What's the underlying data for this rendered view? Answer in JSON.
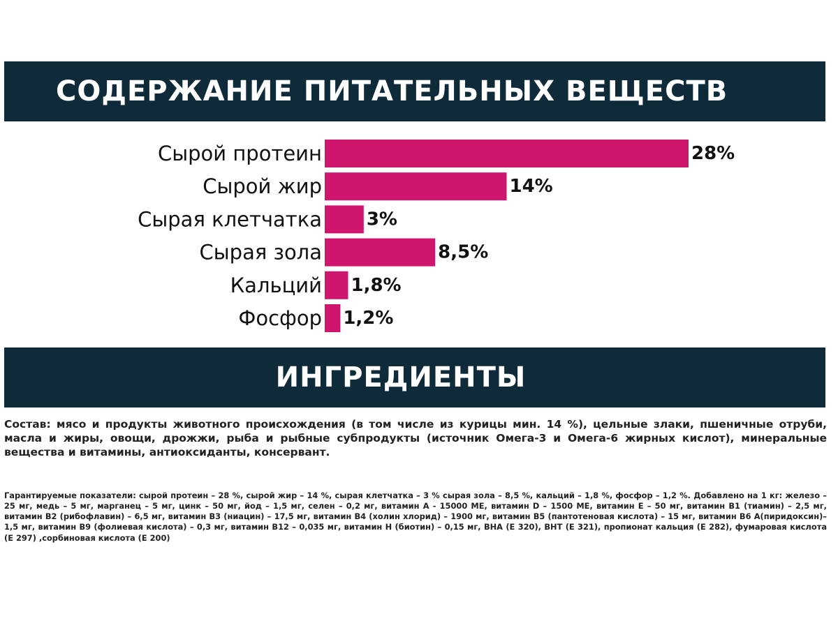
{
  "chart_data": {
    "type": "bar",
    "orientation": "horizontal",
    "title": "СОДЕРЖАНИЕ ПИТАТЕЛЬНЫХ ВЕЩЕСТВ",
    "categories": [
      "Сырой протеин",
      "Сырой жир",
      "Сырая клетчатка",
      "Сырая зола",
      "Кальций",
      "Фосфор"
    ],
    "values": [
      28,
      14,
      3,
      8.5,
      1.8,
      1.2
    ],
    "value_labels": [
      "28%",
      "14%",
      "3%",
      "8,5%",
      "1,8%",
      "1,2%"
    ],
    "xlim": [
      0,
      28
    ],
    "bar_color": "#d0156f",
    "grid": false,
    "legend": "none"
  },
  "ingredients": {
    "title": "ИНГРЕДИЕНТЫ",
    "composition": "Состав: мясо и продукты животного происхождения (в том числе из курицы мин. 14 %), цельные злаки, пшеничные отруби, масла и жиры, овощи, дрожжи, рыба и рыбные субпродукты (источник Омега-3 и Омега-6 жирных кислот), минеральные вещества и витамины, антиоксиданты, консервант.",
    "guaranteed": "Гарантируемые показатели: сырой протеин – 28 %, сырой жир – 14 %, сырая клетчатка – 3 % сырая зола – 8,5 %, кальций – 1,8 %, фосфор – 1,2 %. Добавлено на 1 кг: железо – 25 мг, медь – 5 мг, марганец – 5 мг, цинк – 50 мг, йод – 1,5 мг, селен – 0,2 мг, витамин А - 15000 МЕ, витамин D – 1500 МЕ, витамин Е – 50 мг, витамин В1 (тиамин) – 2,5 мг, витамин В2 (рибофлавин) – 6,5 мг, витамин В3 (ниацин) – 17,5 мг, витамин В4 (холин хлорид) – 1900 мг, витамин В5 (пантотеновая кислота) – 15 мг, витамин В6 А(пиридоксин)– 1,5 мг, витамин В9 (фолиевая кислота) – 0,3 мг, витамин В12 – 0,035 мг, витамин Н (биотин) – 0,15 мг, ВНА (Е 320), ВНТ (Е 321), пропионат кальция (Е 282), фумаровая кислота (Е 297) ,сорбиновая кислота (Е 200)"
  }
}
